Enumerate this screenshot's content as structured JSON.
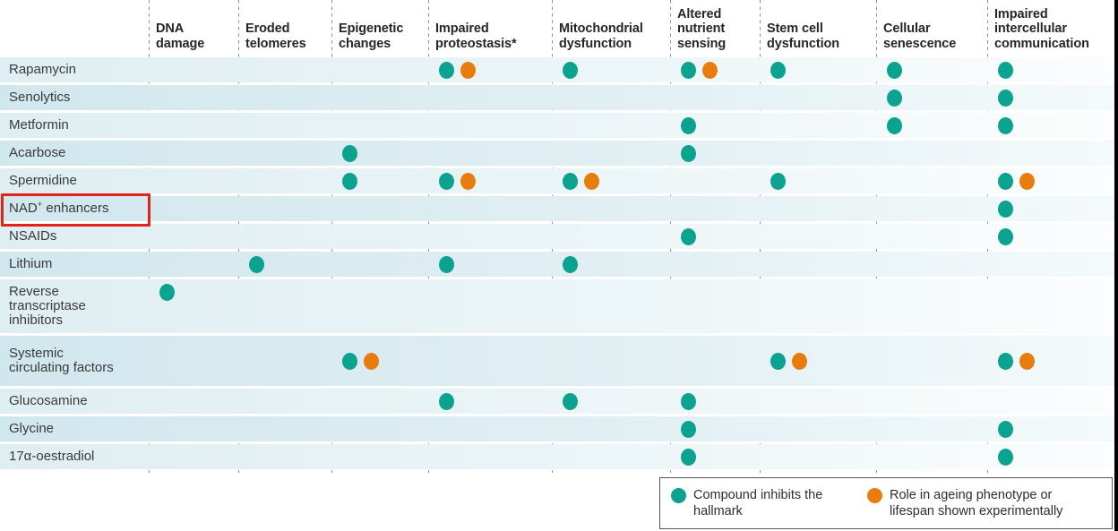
{
  "figure_title": "Compounds versus hallmarks of ageing matrix",
  "colors": {
    "teal_dot": "#0ba violated",
    "teal": "#0ba28f",
    "orange": "#e87d0e",
    "highlight_red": "#e3231a",
    "row_light": "#dfeef2",
    "row_dark": "#d1e7ee",
    "dashed_line": "#8d8d8d",
    "legend_border": "#55555a"
  },
  "chart_data": {
    "type": "table",
    "mark_legend": {
      "T": "teal dot = compound inhibits the hallmark",
      "O": "orange dot = role in ageing phenotype or lifespan shown experimentally"
    },
    "columns": [
      "DNA damage",
      "Eroded telomeres",
      "Epigenetic changes",
      "Impaired proteostasis*",
      "Mitochondrial dysfunction",
      "Altered nutrient sensing",
      "Stem cell dysfunction",
      "Cellular senescence",
      "Impaired intercellular communication"
    ],
    "rows": [
      {
        "label": "Rapamycin",
        "marks": [
          "",
          "",
          "",
          "TO",
          "T",
          "TO",
          "T",
          "T",
          "T"
        ]
      },
      {
        "label": "Senolytics",
        "marks": [
          "",
          "",
          "",
          "",
          "",
          "",
          "",
          "T",
          "T"
        ]
      },
      {
        "label": "Metformin",
        "marks": [
          "",
          "",
          "",
          "",
          "",
          "T",
          "",
          "T",
          "T"
        ]
      },
      {
        "label": "Acarbose",
        "marks": [
          "",
          "",
          "T",
          "",
          "",
          "T",
          "",
          "",
          ""
        ]
      },
      {
        "label": "Spermidine",
        "marks": [
          "",
          "",
          "T",
          "TO",
          "TO",
          "",
          "T",
          "",
          "TO"
        ]
      },
      {
        "label": "NAD+ enhancers",
        "label_parts": {
          "pre": "NAD",
          "sup": "+",
          "post": " enhancers"
        },
        "highlighted": true,
        "marks": [
          "",
          "",
          "",
          "",
          "",
          "",
          "",
          "",
          "T"
        ]
      },
      {
        "label": "NSAIDs",
        "marks": [
          "",
          "",
          "",
          "",
          "",
          "T",
          "",
          "",
          "T"
        ]
      },
      {
        "label": "Lithium",
        "marks": [
          "",
          "T",
          "",
          "T",
          "T",
          "",
          "",
          "",
          ""
        ]
      },
      {
        "label": "Reverse transcriptase inhibitors",
        "marks": [
          "T",
          "",
          "",
          "",
          "",
          "",
          "",
          "",
          ""
        ]
      },
      {
        "label": "Systemic circulating factors",
        "marks": [
          "",
          "",
          "TO",
          "",
          "",
          "",
          "TO",
          "",
          "TO"
        ]
      },
      {
        "label": "Glucosamine",
        "marks": [
          "",
          "",
          "",
          "T",
          "T",
          "T",
          "",
          "",
          ""
        ]
      },
      {
        "label": "Glycine",
        "marks": [
          "",
          "",
          "",
          "",
          "",
          "T",
          "",
          "",
          "T"
        ]
      },
      {
        "label": "17α-oestradiol",
        "marks": [
          "",
          "",
          "",
          "",
          "",
          "T",
          "",
          "",
          "T"
        ]
      }
    ],
    "legend": [
      {
        "color": "#0ba28f",
        "label": "Compound inhibits the hallmark"
      },
      {
        "color": "#e87d0e",
        "label": "Role in ageing phenotype or lifespan shown experimentally"
      }
    ],
    "highlighted_row": "NAD+ enhancers"
  }
}
